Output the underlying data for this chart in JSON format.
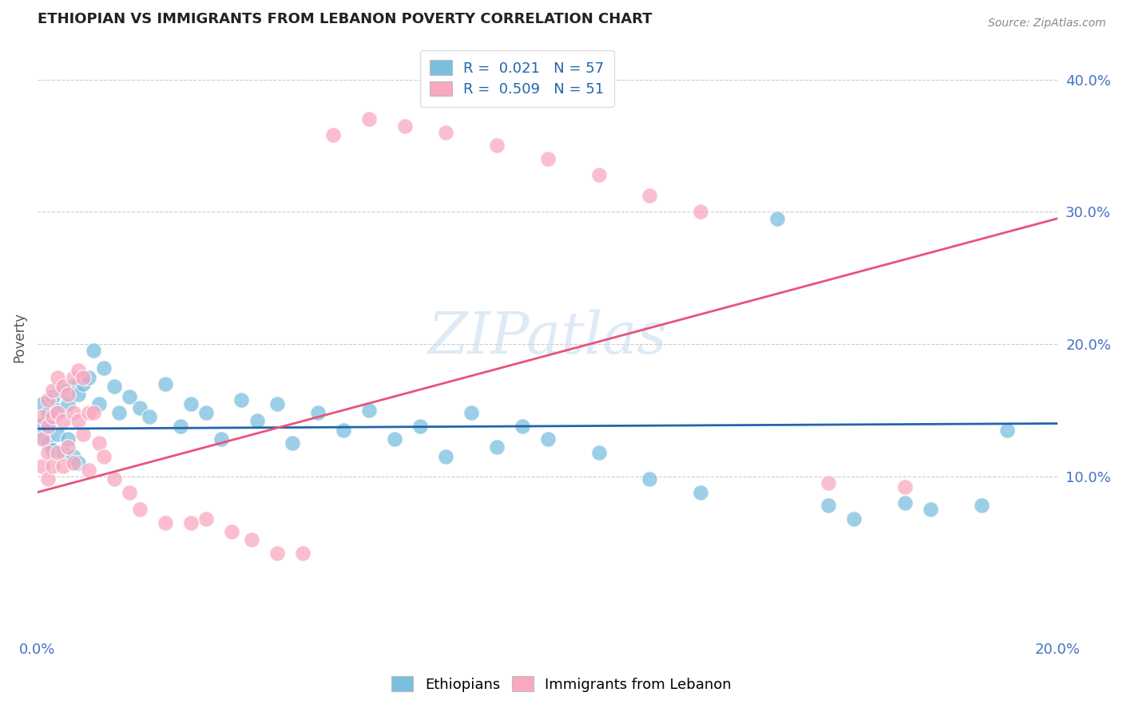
{
  "title": "ETHIOPIAN VS IMMIGRANTS FROM LEBANON POVERTY CORRELATION CHART",
  "source": "Source: ZipAtlas.com",
  "ylabel": "Poverty",
  "ylabel_right_ticks": [
    "10.0%",
    "20.0%",
    "30.0%",
    "40.0%"
  ],
  "ylabel_right_vals": [
    0.1,
    0.2,
    0.3,
    0.4
  ],
  "xmin": 0.0,
  "xmax": 0.2,
  "ymin": -0.02,
  "ymax": 0.43,
  "watermark": "ZIPatlas",
  "legend_ethiopians": "Ethiopians",
  "legend_lebanon": "Immigrants from Lebanon",
  "r_ethiopians": "0.021",
  "n_ethiopians": "57",
  "r_lebanon": "0.509",
  "n_lebanon": "51",
  "color_ethiopians": "#7bbfdf",
  "color_lebanon": "#f9a8c0",
  "color_line_ethiopians": "#2166ac",
  "color_line_lebanon": "#e8537a",
  "eth_line_x": [
    0.0,
    0.2
  ],
  "eth_line_y": [
    0.136,
    0.14
  ],
  "leb_line_x": [
    0.0,
    0.2
  ],
  "leb_line_y": [
    0.088,
    0.295
  ],
  "ethiopians_x": [
    0.001,
    0.001,
    0.001,
    0.002,
    0.002,
    0.002,
    0.003,
    0.003,
    0.004,
    0.004,
    0.005,
    0.005,
    0.006,
    0.006,
    0.007,
    0.007,
    0.008,
    0.008,
    0.009,
    0.01,
    0.011,
    0.012,
    0.013,
    0.015,
    0.016,
    0.018,
    0.02,
    0.022,
    0.025,
    0.028,
    0.03,
    0.033,
    0.036,
    0.04,
    0.043,
    0.047,
    0.05,
    0.055,
    0.06,
    0.065,
    0.07,
    0.075,
    0.08,
    0.085,
    0.09,
    0.095,
    0.1,
    0.11,
    0.12,
    0.13,
    0.145,
    0.155,
    0.16,
    0.17,
    0.175,
    0.185,
    0.19
  ],
  "ethiopians_y": [
    0.155,
    0.14,
    0.13,
    0.148,
    0.138,
    0.125,
    0.16,
    0.12,
    0.15,
    0.132,
    0.165,
    0.118,
    0.155,
    0.128,
    0.168,
    0.115,
    0.162,
    0.11,
    0.17,
    0.175,
    0.195,
    0.155,
    0.182,
    0.168,
    0.148,
    0.16,
    0.152,
    0.145,
    0.17,
    0.138,
    0.155,
    0.148,
    0.128,
    0.158,
    0.142,
    0.155,
    0.125,
    0.148,
    0.135,
    0.15,
    0.128,
    0.138,
    0.115,
    0.148,
    0.122,
    0.138,
    0.128,
    0.118,
    0.098,
    0.088,
    0.295,
    0.078,
    0.068,
    0.08,
    0.075,
    0.078,
    0.135
  ],
  "lebanon_x": [
    0.001,
    0.001,
    0.001,
    0.002,
    0.002,
    0.002,
    0.002,
    0.003,
    0.003,
    0.003,
    0.004,
    0.004,
    0.004,
    0.005,
    0.005,
    0.005,
    0.006,
    0.006,
    0.007,
    0.007,
    0.007,
    0.008,
    0.008,
    0.009,
    0.009,
    0.01,
    0.01,
    0.011,
    0.012,
    0.013,
    0.015,
    0.018,
    0.02,
    0.025,
    0.03,
    0.033,
    0.038,
    0.042,
    0.047,
    0.052,
    0.058,
    0.065,
    0.072,
    0.08,
    0.09,
    0.1,
    0.11,
    0.12,
    0.13,
    0.155,
    0.17
  ],
  "lebanon_y": [
    0.145,
    0.128,
    0.108,
    0.158,
    0.138,
    0.118,
    0.098,
    0.165,
    0.145,
    0.108,
    0.175,
    0.148,
    0.118,
    0.168,
    0.142,
    0.108,
    0.162,
    0.122,
    0.175,
    0.148,
    0.11,
    0.18,
    0.142,
    0.175,
    0.132,
    0.148,
    0.105,
    0.148,
    0.125,
    0.115,
    0.098,
    0.088,
    0.075,
    0.065,
    0.065,
    0.068,
    0.058,
    0.052,
    0.042,
    0.042,
    0.358,
    0.37,
    0.365,
    0.36,
    0.35,
    0.34,
    0.328,
    0.312,
    0.3,
    0.095,
    0.092
  ]
}
